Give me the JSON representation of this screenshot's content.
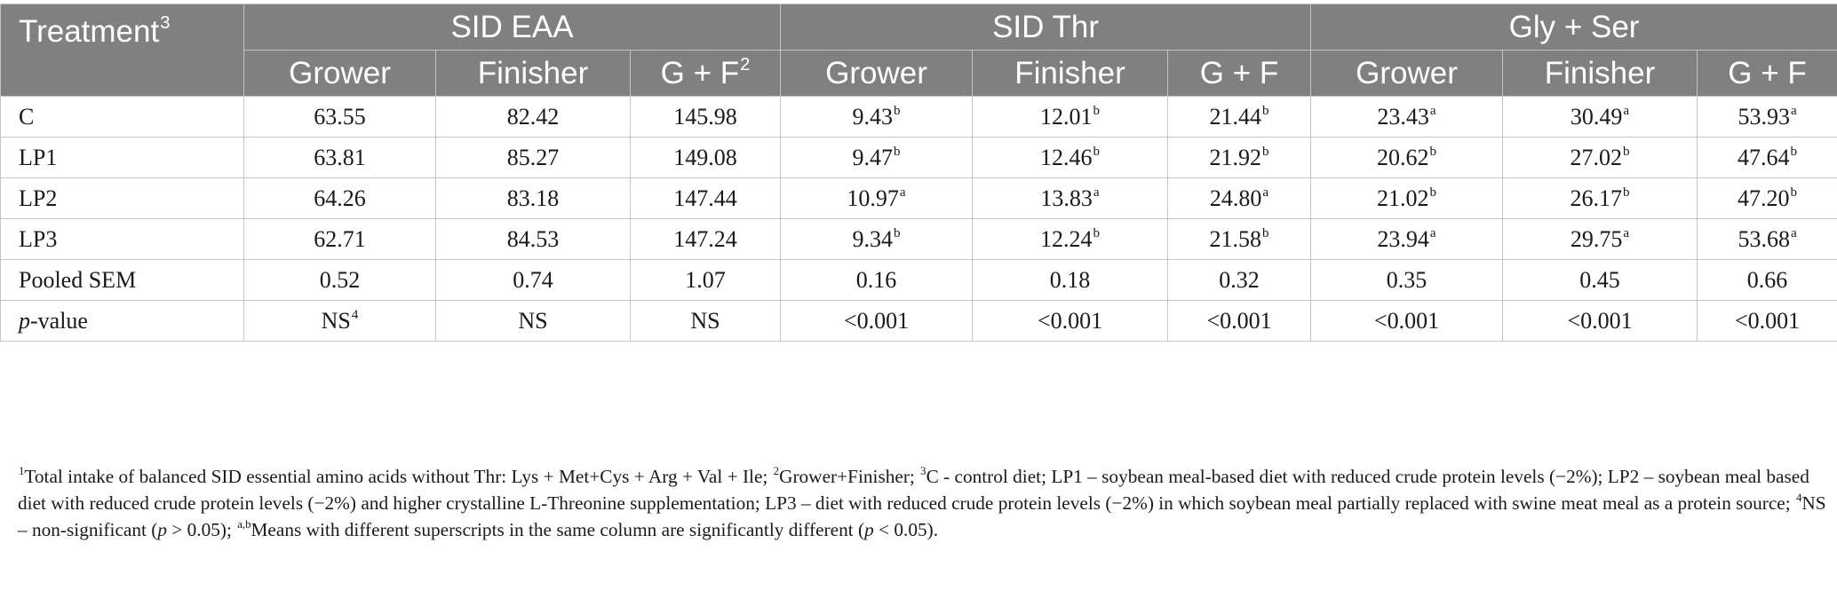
{
  "header": {
    "treatment_label": "Treatment",
    "treatment_sup": "3",
    "groups": [
      "SID EAA",
      "SID Thr",
      "Gly + Ser"
    ],
    "subcols": [
      {
        "label": "Grower",
        "sup": ""
      },
      {
        "label": "Finisher",
        "sup": ""
      },
      {
        "label": "G + F",
        "sup": "2"
      },
      {
        "label": "Grower",
        "sup": ""
      },
      {
        "label": "Finisher",
        "sup": ""
      },
      {
        "label": "G + F",
        "sup": ""
      },
      {
        "label": "Grower",
        "sup": ""
      },
      {
        "label": "Finisher",
        "sup": ""
      },
      {
        "label": "G + F",
        "sup": ""
      }
    ]
  },
  "rows": [
    {
      "label": "C",
      "cells": [
        {
          "v": "63.55",
          "s": ""
        },
        {
          "v": "82.42",
          "s": ""
        },
        {
          "v": "145.98",
          "s": ""
        },
        {
          "v": "9.43",
          "s": "b"
        },
        {
          "v": "12.01",
          "s": "b"
        },
        {
          "v": "21.44",
          "s": "b"
        },
        {
          "v": "23.43",
          "s": "a"
        },
        {
          "v": "30.49",
          "s": "a"
        },
        {
          "v": "53.93",
          "s": "a"
        }
      ]
    },
    {
      "label": "LP1",
      "cells": [
        {
          "v": "63.81",
          "s": ""
        },
        {
          "v": "85.27",
          "s": ""
        },
        {
          "v": "149.08",
          "s": ""
        },
        {
          "v": "9.47",
          "s": "b"
        },
        {
          "v": "12.46",
          "s": "b"
        },
        {
          "v": "21.92",
          "s": "b"
        },
        {
          "v": "20.62",
          "s": "b"
        },
        {
          "v": "27.02",
          "s": "b"
        },
        {
          "v": "47.64",
          "s": "b"
        }
      ]
    },
    {
      "label": "LP2",
      "cells": [
        {
          "v": "64.26",
          "s": ""
        },
        {
          "v": "83.18",
          "s": ""
        },
        {
          "v": "147.44",
          "s": ""
        },
        {
          "v": "10.97",
          "s": "a"
        },
        {
          "v": "13.83",
          "s": "a"
        },
        {
          "v": "24.80",
          "s": "a"
        },
        {
          "v": "21.02",
          "s": "b"
        },
        {
          "v": "26.17",
          "s": "b"
        },
        {
          "v": "47.20",
          "s": "b"
        }
      ]
    },
    {
      "label": "LP3",
      "cells": [
        {
          "v": "62.71",
          "s": ""
        },
        {
          "v": "84.53",
          "s": ""
        },
        {
          "v": "147.24",
          "s": ""
        },
        {
          "v": "9.34",
          "s": "b"
        },
        {
          "v": "12.24",
          "s": "b"
        },
        {
          "v": "21.58",
          "s": "b"
        },
        {
          "v": "23.94",
          "s": "a"
        },
        {
          "v": "29.75",
          "s": "a"
        },
        {
          "v": "53.68",
          "s": "a"
        }
      ]
    },
    {
      "label": "Pooled SEM",
      "cells": [
        {
          "v": "0.52",
          "s": ""
        },
        {
          "v": "0.74",
          "s": ""
        },
        {
          "v": "1.07",
          "s": ""
        },
        {
          "v": "0.16",
          "s": ""
        },
        {
          "v": "0.18",
          "s": ""
        },
        {
          "v": "0.32",
          "s": ""
        },
        {
          "v": "0.35",
          "s": ""
        },
        {
          "v": "0.45",
          "s": ""
        },
        {
          "v": "0.66",
          "s": ""
        }
      ]
    },
    {
      "label_italic": "p",
      "label_rest": "-value",
      "cells": [
        {
          "v": "NS",
          "s": "4"
        },
        {
          "v": "NS",
          "s": ""
        },
        {
          "v": "NS",
          "s": ""
        },
        {
          "v": "<0.001",
          "s": ""
        },
        {
          "v": "<0.001",
          "s": ""
        },
        {
          "v": "<0.001",
          "s": ""
        },
        {
          "v": "<0.001",
          "s": ""
        },
        {
          "v": "<0.001",
          "s": ""
        },
        {
          "v": "<0.001",
          "s": ""
        }
      ]
    }
  ],
  "footnote": {
    "s1": "1",
    "t1": "Total intake of balanced SID essential amino acids without Thr: Lys + Met+Cys + Arg + Val + Ile; ",
    "s2": "2",
    "t2": "Grower+Finisher; ",
    "s3": "3",
    "t3": "C - control diet; LP1 – soybean meal-based diet with reduced crude protein levels (−2%); LP2 – soybean meal based diet with reduced crude protein levels (−2%) and higher crystalline L-Threonine supplementation; LP3 – diet with reduced crude protein levels (−2%) in which soybean meal partially replaced with swine meat meal as a protein source; ",
    "s4": "4",
    "t4a": "NS – non-significant (",
    "p1": "p",
    "t4b": " > 0.05); ",
    "s5": "a,b",
    "t5a": "Means with different superscripts in the same column are significantly different (",
    "p2": "p",
    "t5b": " < 0.05)."
  }
}
